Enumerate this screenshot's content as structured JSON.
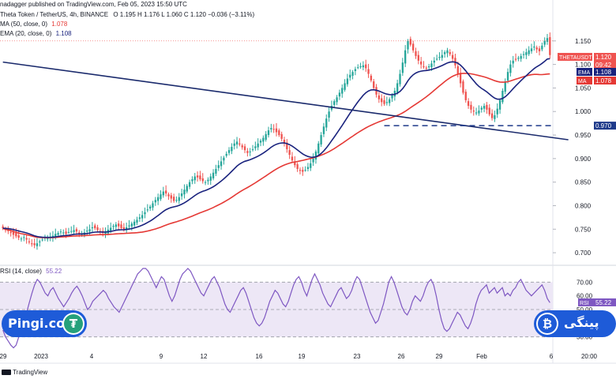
{
  "header": {
    "published": "nadagger published on TradingView.com, Feb 05, 2023 15:50 UTC",
    "symbol": "Theta Token / TetherUS, 4h, BINANCE",
    "ohlc": "O 1.195  H 1.176  L 1.060  C 1.120  −0.036 (−3.11%)",
    "ma_legend": "MA (50, close, 0)",
    "ma_value": "1.078",
    "ema_legend": "EMA (20, close, 0)",
    "ema_value": "1.108",
    "rsi_legend": "RSI (14, close)",
    "rsi_value": "55.22"
  },
  "watermarks": {
    "left_brand": "Pingi.co",
    "right_brand": "پینگی",
    "tradingview": "TradingView"
  },
  "colors": {
    "up": "#26a69a",
    "down": "#ef5350",
    "ma": "#e53935",
    "ema": "#1a237e",
    "trendline": "#1a2a6c",
    "rsi_line": "#7e57c2",
    "rsi_band": "#ede7f6",
    "brand_blue": "#1e5bd8",
    "tether_green": "#26a17b",
    "bitcoin_orange": "#1e5bd8"
  },
  "chart_data": [
    {
      "type": "candlestick",
      "title": "Theta Token / TetherUS, 4h, BINANCE",
      "ylim": [
        0.68,
        1.2
      ],
      "y_ticks": [
        "1.150",
        "1.100",
        "1.050",
        "1.000",
        "0.950",
        "0.900",
        "0.850",
        "0.800",
        "0.750",
        "0.700"
      ],
      "x_tick_labels": [
        "29",
        "2023",
        "4",
        "9",
        "12",
        "16",
        "19",
        "23",
        "26",
        "29",
        "Feb",
        "6",
        "20:00"
      ],
      "price_labels": [
        {
          "text": "THETAUSDT",
          "value": "1.120",
          "sub": "09:42",
          "kind": "price"
        },
        {
          "text": "EMA",
          "value": "1.108",
          "kind": "ema"
        },
        {
          "text": "MA",
          "value": "1.078",
          "kind": "ma"
        },
        {
          "text": "",
          "value": "0.970",
          "kind": "level"
        }
      ],
      "horizontal_level": 0.97,
      "trendline": {
        "start": [
          0,
          1.105
        ],
        "end": [
          215,
          0.94
        ]
      },
      "close": [
        0.752,
        0.748,
        0.746,
        0.742,
        0.738,
        0.735,
        0.732,
        0.73,
        0.733,
        0.728,
        0.722,
        0.718,
        0.716,
        0.72,
        0.724,
        0.728,
        0.732,
        0.73,
        0.734,
        0.736,
        0.74,
        0.742,
        0.745,
        0.743,
        0.74,
        0.744,
        0.746,
        0.748,
        0.745,
        0.742,
        0.74,
        0.743,
        0.747,
        0.75,
        0.754,
        0.752,
        0.748,
        0.744,
        0.742,
        0.745,
        0.749,
        0.753,
        0.757,
        0.76,
        0.756,
        0.752,
        0.75,
        0.754,
        0.758,
        0.762,
        0.766,
        0.77,
        0.775,
        0.78,
        0.786,
        0.792,
        0.798,
        0.805,
        0.812,
        0.818,
        0.824,
        0.83,
        0.826,
        0.82,
        0.815,
        0.81,
        0.812,
        0.818,
        0.826,
        0.834,
        0.842,
        0.85,
        0.856,
        0.862,
        0.86,
        0.856,
        0.852,
        0.85,
        0.855,
        0.862,
        0.87,
        0.878,
        0.886,
        0.894,
        0.902,
        0.91,
        0.918,
        0.925,
        0.932,
        0.936,
        0.93,
        0.924,
        0.918,
        0.912,
        0.915,
        0.92,
        0.926,
        0.932,
        0.938,
        0.944,
        0.952,
        0.96,
        0.965,
        0.962,
        0.956,
        0.95,
        0.942,
        0.932,
        0.92,
        0.908,
        0.896,
        0.886,
        0.878,
        0.874,
        0.872,
        0.876,
        0.882,
        0.89,
        0.9,
        0.915,
        0.932,
        0.95,
        0.968,
        0.985,
        1.0,
        1.012,
        1.022,
        1.03,
        1.04,
        1.05,
        1.06,
        1.07,
        1.078,
        1.084,
        1.09,
        1.094,
        1.096,
        1.098,
        1.092,
        1.08,
        1.066,
        1.05,
        1.036,
        1.026,
        1.02,
        1.016,
        1.02,
        1.026,
        1.034,
        1.044,
        1.06,
        1.08,
        1.104,
        1.13,
        1.15,
        1.142,
        1.13,
        1.118,
        1.108,
        1.1,
        1.095,
        1.092,
        1.096,
        1.102,
        1.108,
        1.112,
        1.116,
        1.12,
        1.126,
        1.13,
        1.122,
        1.112,
        1.098,
        1.08,
        1.06,
        1.04,
        1.024,
        1.012,
        1.004,
        1.0,
        0.998,
        1.002,
        1.008,
        1.012,
        1.004,
        0.994,
        0.986,
        0.992,
        1.006,
        1.024,
        1.044,
        1.064,
        1.084,
        1.1,
        1.108,
        1.11,
        1.114,
        1.118,
        1.122,
        1.126,
        1.13,
        1.134,
        1.138,
        1.132,
        1.128,
        1.14,
        1.15,
        1.156,
        1.12
      ]
    },
    {
      "type": "line",
      "title": "RSI (14, close)",
      "ylim": [
        20,
        80
      ],
      "y_ticks": [
        "70.00",
        "60.00",
        "50.00",
        "40.00",
        "30.00"
      ],
      "band": [
        30,
        70
      ],
      "last_value": 55.22,
      "values": [
        35,
        30,
        27,
        24,
        22,
        24,
        30,
        36,
        42,
        48,
        55,
        62,
        68,
        72,
        70,
        66,
        62,
        60,
        64,
        66,
        62,
        58,
        55,
        52,
        55,
        58,
        62,
        65,
        67,
        64,
        60,
        55,
        50,
        52,
        56,
        58,
        60,
        62,
        64,
        62,
        58,
        55,
        52,
        50,
        48,
        52,
        56,
        60,
        64,
        68,
        72,
        76,
        78,
        80,
        80,
        78,
        74,
        70,
        66,
        70,
        74,
        72,
        66,
        60,
        56,
        60,
        66,
        72,
        76,
        78,
        80,
        78,
        74,
        70,
        66,
        62,
        60,
        64,
        68,
        72,
        74,
        70,
        66,
        60,
        54,
        50,
        48,
        52,
        56,
        60,
        64,
        66,
        62,
        56,
        50,
        44,
        40,
        38,
        40,
        44,
        50,
        56,
        60,
        64,
        62,
        58,
        54,
        52,
        56,
        62,
        68,
        72,
        74,
        70,
        64,
        60,
        66,
        72,
        76,
        72,
        68,
        62,
        58,
        54,
        52,
        56,
        60,
        64,
        66,
        62,
        58,
        60,
        64,
        70,
        74,
        72,
        66,
        60,
        54,
        48,
        44,
        40,
        42,
        48,
        54,
        62,
        70,
        74,
        70,
        64,
        58,
        52,
        48,
        46,
        50,
        56,
        60,
        58,
        56,
        60,
        66,
        70,
        72,
        68,
        60,
        50,
        42,
        36,
        34,
        36,
        40,
        44,
        48,
        46,
        42,
        38,
        36,
        40,
        46,
        54,
        60,
        64,
        66,
        68,
        62,
        64,
        66,
        62,
        64,
        66,
        60,
        62,
        60,
        64,
        66,
        70,
        72,
        68,
        64,
        62,
        60,
        62,
        64,
        66,
        68,
        64,
        58,
        55
      ]
    }
  ]
}
